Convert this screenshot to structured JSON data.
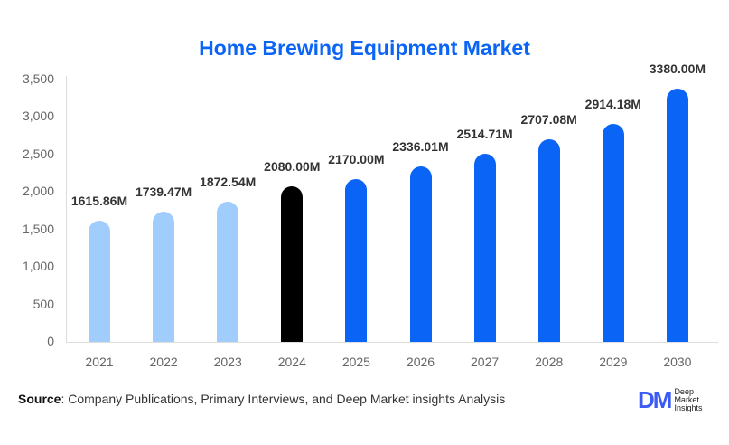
{
  "chart_data": {
    "type": "bar",
    "title": "Home Brewing Equipment Market",
    "xlabel": "",
    "ylabel": "",
    "ylim": [
      0,
      3500
    ],
    "yticks": [
      0,
      500,
      1000,
      1500,
      2000,
      2500,
      3000,
      3500
    ],
    "ytick_labels": [
      "0",
      "500",
      "1,000",
      "1,500",
      "2,000",
      "2,500",
      "3,000",
      "3,500"
    ],
    "categories": [
      "2021",
      "2022",
      "2023",
      "2024",
      "2025",
      "2026",
      "2027",
      "2028",
      "2029",
      "2030"
    ],
    "values": [
      1615.86,
      1739.47,
      1872.54,
      2080.0,
      2170.0,
      2336.01,
      2514.71,
      2707.08,
      2914.18,
      3380.0
    ],
    "data_labels": [
      "1615.86M",
      "1739.47M",
      "1872.54M",
      "2080.00M",
      "2170.00M",
      "2336.01M",
      "2514.71M",
      "2707.08M",
      "2914.18M",
      "3380.00M"
    ],
    "bar_colors": [
      "#a0cdfb",
      "#a0cdfb",
      "#a0cdfb",
      "#000000",
      "#0a64f5",
      "#0a64f5",
      "#0a64f5",
      "#0a64f5",
      "#0a64f5",
      "#0a64f5"
    ],
    "grid": false,
    "legend": null
  },
  "footer": {
    "source_label": "Source",
    "source_text": ": Company Publications, Primary Interviews, and Deep Market insights Analysis",
    "logo_mark": "DM",
    "logo_line1": "Deep",
    "logo_line2": "Market",
    "logo_line3": "Insights"
  }
}
